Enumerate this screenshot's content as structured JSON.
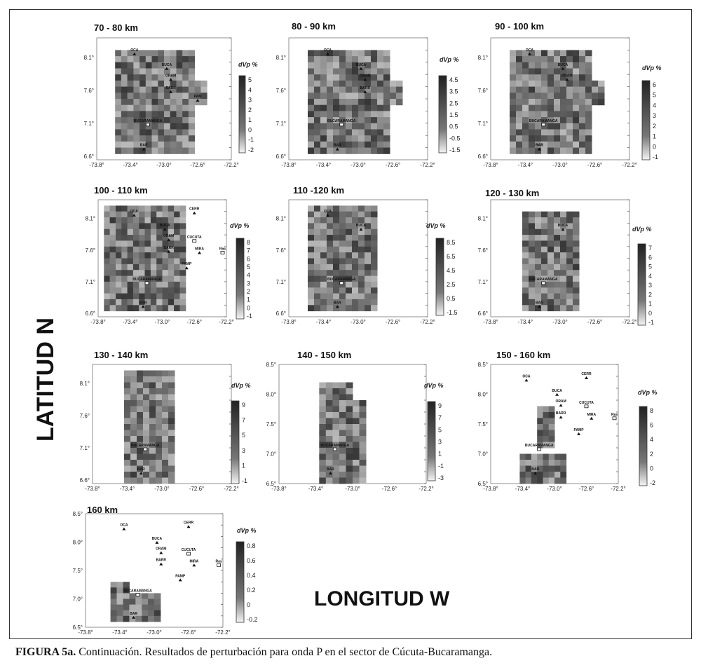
{
  "figure": {
    "y_axis_label": "LATITUD N",
    "x_axis_label": "LONGITUD W",
    "caption_label": "FIGURA 5a.",
    "caption_text": " Continuación. Resultados de perturbación para onda P en el sector de Cúcuta-Bucaramanga."
  },
  "colorbar_label": "dVp %",
  "panels": [
    {
      "title": "70 - 80 km",
      "lat_ticks": [
        "8.1°",
        "7.6°",
        "7.1°",
        "6.6°"
      ],
      "lon_ticks": [
        "-73.8°",
        "-73.4°",
        "-73.0°",
        "-72.6°",
        "-72.2°"
      ],
      "cbar_ticks": [
        "5",
        "4",
        "3",
        "2",
        "1",
        "0",
        "-1",
        "-2"
      ],
      "stations": [
        {
          "name": "OCA"
        },
        {
          "name": "BUCA"
        },
        {
          "name": "ORAM"
        },
        {
          "name": "BARR"
        },
        {
          "name": "PAM"
        },
        {
          "name": "BUCARAMANGA"
        },
        {
          "name": "BAR"
        }
      ]
    },
    {
      "title": "80 - 90 km",
      "lat_ticks": [
        "8.1°",
        "7.6°",
        "7.1°",
        "6.6°"
      ],
      "lon_ticks": [
        "-73.8°",
        "-73.4°",
        "-73.0°",
        "-72.6°",
        "-72.2°"
      ],
      "cbar_ticks": [
        "4.5",
        "3.5",
        "2.5",
        "1.5",
        "0.5",
        "-0.5",
        "-1.5"
      ],
      "stations": [
        {
          "name": "OCA"
        },
        {
          "name": "BUCA"
        },
        {
          "name": "ORAM"
        },
        {
          "name": "BARR"
        },
        {
          "name": "BUCARAMANGA"
        },
        {
          "name": "BAR"
        }
      ]
    },
    {
      "title": "90 - 100 km",
      "lat_ticks": [
        "8.1°",
        "7.6°",
        "7.1°",
        "6.6°"
      ],
      "lon_ticks": [
        "-73.8°",
        "-73.4°",
        "-73.0°",
        "-72.6°",
        "-72.2°"
      ],
      "cbar_ticks": [
        "6",
        "5",
        "4",
        "3",
        "2",
        "1",
        "0",
        "-1"
      ],
      "stations": [
        {
          "name": "OCA"
        },
        {
          "name": "BUCA"
        },
        {
          "name": "ORAM"
        },
        {
          "name": "BAR"
        },
        {
          "name": "BUCARAMANGA"
        },
        {
          "name": "BAR"
        }
      ]
    },
    {
      "title": "100 - 110  km",
      "lat_ticks": [
        "8.1°",
        "7.6°",
        "7.1°",
        "6.6°"
      ],
      "lon_ticks": [
        "-73.8°",
        "-73.4°",
        "-73.0°",
        "-72.6°",
        "-72.2°"
      ],
      "cbar_ticks": [
        "8",
        "7",
        "6",
        "5",
        "4",
        "3",
        "2",
        "1",
        "0",
        "-1"
      ],
      "stations": [
        {
          "name": "OCA"
        },
        {
          "name": "CERR"
        },
        {
          "name": "BUCA"
        },
        {
          "name": "ORAM"
        },
        {
          "name": "CUCUTA"
        },
        {
          "name": "BARR"
        },
        {
          "name": "MIRA"
        },
        {
          "name": "Ras"
        },
        {
          "name": "PAMP"
        },
        {
          "name": "BUCARAMANGA"
        },
        {
          "name": "BAR"
        }
      ]
    },
    {
      "title": "110 -120 km",
      "lat_ticks": [
        "8.1°",
        "7.6°",
        "7.1°",
        "6.6°"
      ],
      "lon_ticks": [
        "-73.8°",
        "-73.4°",
        "-73.0°",
        "-72.6°",
        "-72.2°"
      ],
      "cbar_ticks": [
        "8.5",
        "6.5",
        "4.5",
        "2.5",
        "0.5",
        "-1.5"
      ],
      "stations": [
        {
          "name": "OCA"
        },
        {
          "name": "BUCA"
        },
        {
          "name": "BUCARAMANGA"
        },
        {
          "name": "BAR"
        }
      ]
    },
    {
      "title": "120 - 130 km",
      "lat_ticks": [
        "8.1°",
        "7.6°",
        "7.1°",
        "6.6°"
      ],
      "lon_ticks": [
        "-73.8°",
        "-73.4°",
        "-73.0°",
        "-72.6°",
        "-72.2°"
      ],
      "cbar_ticks": [
        "7",
        "6",
        "5",
        "4",
        "3",
        "2",
        "1",
        "0",
        "-1"
      ],
      "stations": [
        {
          "name": "BUCA"
        },
        {
          "name": "BUCARAMANGA"
        },
        {
          "name": "BAR"
        }
      ]
    },
    {
      "title": "130 - 140 km",
      "lat_ticks": [
        "8.1°",
        "7.6°",
        "7.1°",
        "6.6°"
      ],
      "lon_ticks": [
        "-73.8°",
        "-73.4°",
        "-73.0°",
        "-72.6°",
        "-72.2°"
      ],
      "cbar_ticks": [
        "9",
        "7",
        "5",
        "3",
        "1",
        "-1"
      ],
      "stations": [
        {
          "name": "BUCARAMANGA"
        },
        {
          "name": "BAR"
        }
      ]
    },
    {
      "title": "140 - 150 km",
      "lat_ticks": [
        "8.5°",
        "8.0°",
        "7.5°",
        "7.0°",
        "6.5°"
      ],
      "lon_ticks": [
        "-73.8°",
        "-73.4°",
        "-73.0°",
        "-72.6°",
        "-72.2°"
      ],
      "cbar_ticks": [
        "9",
        "7",
        "5",
        "3",
        "1",
        "-1",
        "-3"
      ],
      "stations": [
        {
          "name": "BUCARAMANGA"
        },
        {
          "name": "BAR"
        }
      ]
    },
    {
      "title": "150 - 160  km",
      "lat_ticks": [
        "8.5°",
        "8.0°",
        "7.5°",
        "7.0°",
        "6.5°"
      ],
      "lon_ticks": [
        "-73.8°",
        "-73.4°",
        "-73.0°",
        "-72.6°",
        "-72.2°"
      ],
      "cbar_ticks": [
        "8",
        "6",
        "4",
        "2",
        "0",
        "-2"
      ],
      "stations": [
        {
          "name": "OCA"
        },
        {
          "name": "CERR"
        },
        {
          "name": "BUCA"
        },
        {
          "name": "ORAM"
        },
        {
          "name": "CUCUTA"
        },
        {
          "name": "BARR"
        },
        {
          "name": "MIRA"
        },
        {
          "name": "Ras"
        },
        {
          "name": "PAMP"
        },
        {
          "name": "BUCARAMANGA"
        },
        {
          "name": "BAR"
        }
      ]
    },
    {
      "title": "160  km",
      "lat_ticks": [
        "8.5°",
        "8.0°",
        "7.5°",
        "7.0°",
        "6.5°"
      ],
      "lon_ticks": [
        "-73.8°",
        "-73.4°",
        "-73.0°",
        "-72.6°",
        "-72.2°"
      ],
      "cbar_ticks": [
        "0.8",
        "0.6",
        "0.4",
        "0.2",
        "0",
        "-0.2"
      ],
      "stations": [
        {
          "name": "OCA"
        },
        {
          "name": "CERR"
        },
        {
          "name": "BUCA"
        },
        {
          "name": "ORAM"
        },
        {
          "name": "CUCUTA"
        },
        {
          "name": "BARR"
        },
        {
          "name": "MIRA"
        },
        {
          "name": "Ras"
        },
        {
          "name": "PAMP"
        },
        {
          "name": "BUCARAMANGA"
        },
        {
          "name": "BAR"
        }
      ]
    }
  ]
}
